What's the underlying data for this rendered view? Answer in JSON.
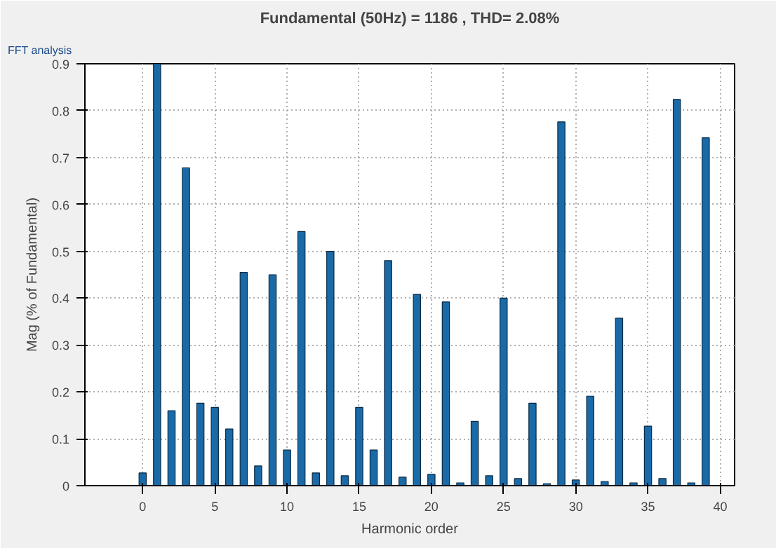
{
  "chart_data": {
    "type": "bar",
    "title": "Fundamental (50Hz) = 1186 , THD= 2.08%",
    "xlabel": "Harmonic order",
    "ylabel": "Mag (% of Fundamental)",
    "annotations": [
      "FFT analysis"
    ],
    "x": [
      0,
      1,
      2,
      3,
      4,
      5,
      6,
      7,
      8,
      9,
      10,
      11,
      12,
      13,
      14,
      15,
      16,
      17,
      18,
      19,
      20,
      21,
      22,
      23,
      24,
      25,
      26,
      27,
      28,
      29,
      30,
      31,
      32,
      33,
      34,
      35,
      36,
      37,
      38,
      39
    ],
    "series": [
      {
        "color": "#1a6aa8",
        "values": [
          0.027,
          0.9,
          0.16,
          0.678,
          0.176,
          0.167,
          0.121,
          0.455,
          0.042,
          0.45,
          0.076,
          0.542,
          0.027,
          0.5,
          0.021,
          0.167,
          0.076,
          0.48,
          0.018,
          0.408,
          0.024,
          0.392,
          0.006,
          0.137,
          0.021,
          0.4,
          0.015,
          0.176,
          0.004,
          0.776,
          0.012,
          0.191,
          0.009,
          0.357,
          0.006,
          0.127,
          0.015,
          0.824,
          0.006,
          0.742
        ]
      }
    ],
    "xlim": [
      -4,
      41
    ],
    "xticks": [
      0,
      5,
      10,
      15,
      20,
      25,
      30,
      35,
      40
    ],
    "ylim": [
      0,
      0.9
    ],
    "yticks": [
      0,
      0.1,
      0.2,
      0.3,
      0.4,
      0.5,
      0.6,
      0.7,
      0.8,
      0.9
    ],
    "grid": true
  }
}
